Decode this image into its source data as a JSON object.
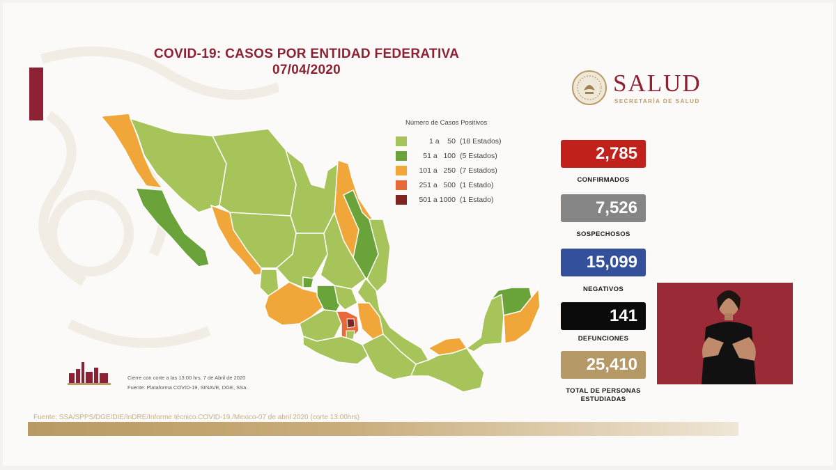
{
  "title": {
    "line1": "COVID-19: CASOS POR ENTIDAD FEDERATIVA",
    "line2": "07/04/2020"
  },
  "logo": {
    "word": "SALUD",
    "sub": "SECRETARÍA DE SALUD",
    "seal_icon": "coat-of-arms-icon"
  },
  "legend": {
    "title": "Número de Casos Positivos",
    "items": [
      {
        "range": "1 a    50",
        "count": "(18 Estados)",
        "color": "#a6c45a"
      },
      {
        "range": "51 a   100",
        "count": "(5 Estados)",
        "color": "#6aa33a"
      },
      {
        "range": "101 a   250",
        "count": "(7 Estados)",
        "color": "#f0a638"
      },
      {
        "range": "251 a   500",
        "count": "(1 Estado)",
        "color": "#e86a38"
      },
      {
        "range": "501 a 1000",
        "count": "(1 Estado)",
        "color": "#7e2422"
      }
    ]
  },
  "stats": [
    {
      "value": "2,785",
      "label": "CONFIRMADOS",
      "color": "#c0221b"
    },
    {
      "value": "7,526",
      "label": "SOSPECHOSOS",
      "color": "#858585"
    },
    {
      "value": "15,099",
      "label": "NEGATIVOS",
      "color": "#34509a"
    },
    {
      "value": "141",
      "label": "DEFUNCIONES",
      "color": "#0b0b0b"
    },
    {
      "value": "25,410",
      "label": "TOTAL DE PERSONAS ESTUDIADAS",
      "color": "#b49967"
    }
  ],
  "notes": {
    "cutoff": "Cierre con corte a las 13:00 hrs, 7 de Abril de 2020",
    "fuente": "Fuente: Plataforma COVID-19, SINAVE, DGE, SSa.",
    "source": "Fuente: SSA/SPPS/DGE/DIE/InDRE/Informe técnico.COVID-19./Mexico-07 de abril 2020 (corte 13:00hrs)"
  },
  "colors": {
    "brand": "#8e2033",
    "gold": "#b89a64",
    "map_low": "#a6c45a",
    "map_mid": "#6aa33a",
    "map_high": "#f0a638",
    "map_higher": "#e86a38",
    "map_top": "#7e2422"
  }
}
